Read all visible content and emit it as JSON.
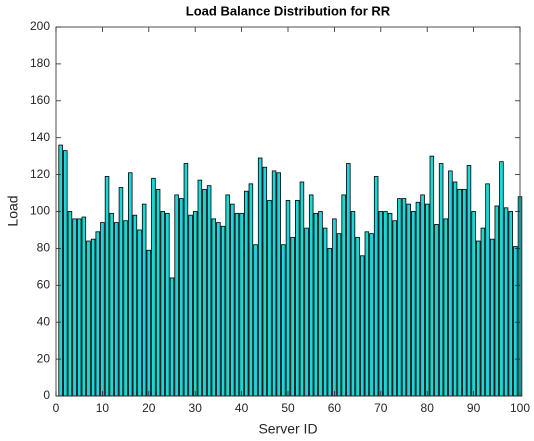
{
  "chart_data": {
    "type": "bar",
    "title": "Load Balance Distribution for RR",
    "xlabel": "Server ID",
    "ylabel": "Load",
    "x": [
      1,
      2,
      3,
      4,
      5,
      6,
      7,
      8,
      9,
      10,
      11,
      12,
      13,
      14,
      15,
      16,
      17,
      18,
      19,
      20,
      21,
      22,
      23,
      24,
      25,
      26,
      27,
      28,
      29,
      30,
      31,
      32,
      33,
      34,
      35,
      36,
      37,
      38,
      39,
      40,
      41,
      42,
      43,
      44,
      45,
      46,
      47,
      48,
      49,
      50,
      51,
      52,
      53,
      54,
      55,
      56,
      57,
      58,
      59,
      60,
      61,
      62,
      63,
      64,
      65,
      66,
      67,
      68,
      69,
      70,
      71,
      72,
      73,
      74,
      75,
      76,
      77,
      78,
      79,
      80,
      81,
      82,
      83,
      84,
      85,
      86,
      87,
      88,
      89,
      90,
      91,
      92,
      93,
      94,
      95,
      96,
      97,
      98,
      99,
      100
    ],
    "values": [
      136,
      133,
      100,
      96,
      96,
      97,
      84,
      85,
      89,
      94,
      119,
      99,
      94,
      113,
      95,
      121,
      98,
      90,
      104,
      79,
      118,
      112,
      100,
      99,
      64,
      109,
      107,
      126,
      98,
      100,
      117,
      112,
      114,
      96,
      94,
      92,
      109,
      104,
      99,
      99,
      111,
      115,
      82,
      129,
      124,
      106,
      122,
      121,
      82,
      106,
      86,
      106,
      116,
      91,
      109,
      99,
      100,
      91,
      80,
      96,
      88,
      109,
      126,
      100,
      86,
      76,
      89,
      88,
      119,
      100,
      100,
      99,
      95,
      107,
      107,
      104,
      100,
      105,
      109,
      104,
      130,
      93,
      126,
      96,
      122,
      116,
      112,
      112,
      125,
      100,
      84,
      91,
      115,
      85,
      103,
      127,
      102,
      100,
      81,
      108
    ],
    "color": "#1fd6d6",
    "xlim": [
      0,
      100
    ],
    "xticks": [
      0,
      10,
      20,
      30,
      40,
      50,
      60,
      70,
      80,
      90,
      100
    ],
    "ylim": [
      0,
      200
    ],
    "yticks": [
      0,
      20,
      40,
      60,
      80,
      100,
      120,
      140,
      160,
      180,
      200
    ]
  }
}
